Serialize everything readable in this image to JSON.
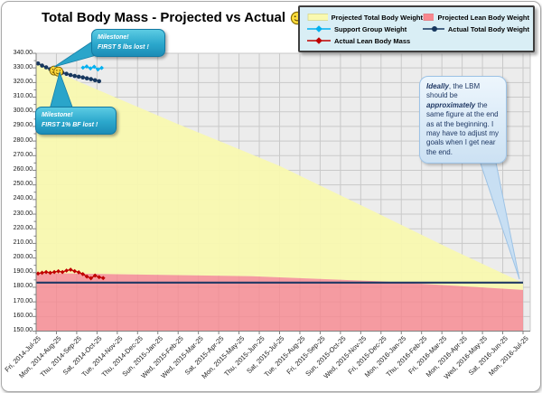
{
  "header": {
    "title": "Total Body Mass - Projected vs Actual",
    "smiley_icon": "smiley-face"
  },
  "legend": {
    "items": [
      {
        "label": "Projected Total Body Weight",
        "swatch": "area",
        "color": "#F9F9B0"
      },
      {
        "label": "Projected Lean Body Weight",
        "swatch": "area",
        "color": "#F8878E"
      },
      {
        "label": "Support Group Weight",
        "swatch": "line-diamond",
        "color": "#00B0F0"
      },
      {
        "label": "Actual Total Body Weight",
        "swatch": "line-circle",
        "color": "#17375E"
      },
      {
        "label": "Actual Lean Body Mass",
        "swatch": "line-diamond",
        "color": "#C00000"
      }
    ]
  },
  "callouts": {
    "milestone1": {
      "line1": "Milestone!",
      "line2": "FIRST 5 lbs lost !"
    },
    "milestone2": {
      "line1": "Milestone!",
      "line2": "FIRST  1% BF lost !"
    },
    "ideally": {
      "part1": "Ideally",
      "part2": ", the LBM should be ",
      "part3": "approximately",
      "part4": " the same figure at the end as at the beginning.  I may have to adjust my goals when I get near the end."
    }
  },
  "chart_data": {
    "type": "area+line",
    "title": "Total Body Mass - Projected vs Actual",
    "ylim": [
      150,
      340
    ],
    "y_tick_step": 10,
    "grid": true,
    "legend_position": "top-right",
    "x_weeks_total": 104,
    "x_tick_labels": [
      "Fri, 2014-Jul-25",
      "Mon, 2014-Aug-25",
      "Thu, 2014-Sep-25",
      "Sat, 2014-Oct-25",
      "Tue, 2014-Nov-25",
      "Thu, 2014-Dec-25",
      "Sun, 2015-Jan-25",
      "Wed, 2015-Feb-25",
      "Wed, 2015-Mar-25",
      "Sat, 2015-Apr-25",
      "Mon, 2015-May-25",
      "Thu, 2015-Jun-25",
      "Sat, 2015-Jul-25",
      "Tue, 2015-Aug-25",
      "Fri, 2015-Sep-25",
      "Sun, 2015-Oct-25",
      "Wed, 2015-Nov-25",
      "Fri, 2015-Dec-25",
      "Mon, 2016-Jan-25",
      "Thu, 2016-Feb-25",
      "Fri, 2016-Mar-25",
      "Mon, 2016-Apr-25",
      "Wed, 2016-May-25",
      "Sat, 2016-Jun-25",
      "Mon, 2016-Jul-25"
    ],
    "series": [
      {
        "id": "projected_total",
        "name": "Projected Total Body Weight",
        "type": "area",
        "color": "#F9F9B0",
        "opacity": 0.95,
        "points": [
          [
            0,
            333
          ],
          [
            30,
            292
          ],
          [
            52,
            263
          ],
          [
            72,
            232
          ],
          [
            88,
            207
          ],
          [
            104,
            183
          ]
        ]
      },
      {
        "id": "projected_lean",
        "name": "Projected Lean Body Weight",
        "type": "area",
        "color": "#F8878E",
        "opacity": 0.8,
        "points": [
          [
            0,
            189.8
          ],
          [
            46,
            187.5
          ],
          [
            74,
            184.0
          ],
          [
            104,
            178.2
          ]
        ]
      },
      {
        "id": "lbm_level",
        "name": "LBM level line",
        "type": "line",
        "color": "#1F3864",
        "width": 2.2,
        "marker": "none",
        "points": [
          [
            0,
            183.2
          ],
          [
            104,
            183.2
          ]
        ]
      },
      {
        "id": "support_group",
        "name": "Support Group Weight",
        "type": "line",
        "color": "#00B0F0",
        "width": 1.4,
        "marker": "diamond",
        "points": [
          [
            10,
            330.2
          ],
          [
            10.8,
            331
          ],
          [
            11.6,
            329.7
          ],
          [
            12.4,
            330.8
          ],
          [
            13.2,
            329
          ],
          [
            14,
            330
          ]
        ]
      },
      {
        "id": "actual_total",
        "name": "Actual Total Body Weight",
        "type": "line",
        "color": "#17375E",
        "width": 1.4,
        "marker": "circle",
        "smiley_indices": [
          4,
          5
        ],
        "points": [
          [
            0.4,
            333
          ],
          [
            1.27,
            331.6
          ],
          [
            2.14,
            330.4
          ],
          [
            3.01,
            329.2
          ],
          [
            3.88,
            328.2
          ],
          [
            4.75,
            327.5
          ],
          [
            5.62,
            326.8
          ],
          [
            6.49,
            326
          ],
          [
            7.36,
            325.2
          ],
          [
            8.23,
            324.5
          ],
          [
            9.1,
            324
          ],
          [
            9.97,
            323.5
          ],
          [
            10.84,
            322.9
          ],
          [
            11.71,
            322.3
          ],
          [
            12.58,
            321.6
          ],
          [
            13.45,
            320.9
          ]
        ]
      },
      {
        "id": "actual_lean",
        "name": "Actual Lean Body Mass",
        "type": "line",
        "color": "#C00000",
        "width": 1.3,
        "marker": "diamond",
        "points": [
          [
            0.4,
            189.4
          ],
          [
            1.27,
            189.9
          ],
          [
            2.14,
            190.4
          ],
          [
            3.01,
            189.9
          ],
          [
            3.88,
            190.4
          ],
          [
            4.75,
            190.9
          ],
          [
            5.62,
            190.4
          ],
          [
            6.49,
            191.4
          ],
          [
            7.36,
            192
          ],
          [
            8.23,
            191
          ],
          [
            9.1,
            190.2
          ],
          [
            9.97,
            189
          ],
          [
            10.84,
            187.3
          ],
          [
            11.71,
            186.2
          ],
          [
            12.58,
            188
          ],
          [
            13.45,
            186.9
          ],
          [
            14.32,
            186.3
          ]
        ]
      }
    ]
  }
}
